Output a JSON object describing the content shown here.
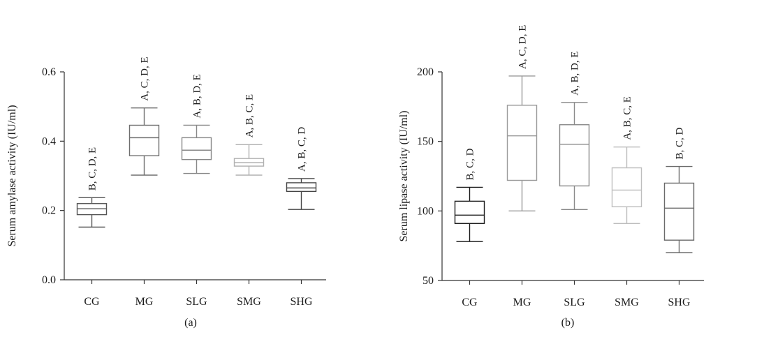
{
  "chart_data": [
    {
      "type": "boxplot",
      "panel_label": "(a)",
      "ylabel": "Serum amylase activity (IU/ml)",
      "ylim": [
        0.0,
        0.6
      ],
      "yticks": [
        0.0,
        0.2,
        0.4,
        0.6
      ],
      "ytick_labels": [
        "0.0",
        "0.2",
        "0.4",
        "0.6"
      ],
      "categories": [
        "CG",
        "MG",
        "SLG",
        "SMG",
        "SHG"
      ],
      "colors": [
        "#555555",
        "#6e6e6e",
        "#888888",
        "#b0b0b0",
        "#444444"
      ],
      "boxes": [
        {
          "min": 0.152,
          "q1": 0.188,
          "median": 0.205,
          "q3": 0.22,
          "max": 0.237
        },
        {
          "min": 0.302,
          "q1": 0.358,
          "median": 0.41,
          "q3": 0.446,
          "max": 0.496
        },
        {
          "min": 0.307,
          "q1": 0.347,
          "median": 0.374,
          "q3": 0.41,
          "max": 0.446
        },
        {
          "min": 0.302,
          "q1": 0.328,
          "median": 0.338,
          "q3": 0.35,
          "max": 0.39
        },
        {
          "min": 0.203,
          "q1": 0.255,
          "median": 0.265,
          "q3": 0.28,
          "max": 0.292
        }
      ],
      "annotations": [
        "B, C, D, E",
        "A, C, D, E",
        "A, B, D, E",
        "A, B, C, E",
        "A, B, C, D"
      ]
    },
    {
      "type": "boxplot",
      "panel_label": "(b)",
      "ylabel": "Serum lipase activity (IU/ml)",
      "ylim": [
        50,
        200
      ],
      "yticks": [
        50,
        100,
        150,
        200
      ],
      "ytick_labels": [
        "50",
        "100",
        "150",
        "200"
      ],
      "categories": [
        "CG",
        "MG",
        "SLG",
        "SMG",
        "SHG"
      ],
      "colors": [
        "#1a1a1a",
        "#9a9a9a",
        "#888888",
        "#bdbdbd",
        "#6a6a6a"
      ],
      "boxes": [
        {
          "min": 78,
          "q1": 91,
          "median": 97,
          "q3": 107,
          "max": 117
        },
        {
          "min": 100,
          "q1": 122,
          "median": 154,
          "q3": 176,
          "max": 197
        },
        {
          "min": 101,
          "q1": 118,
          "median": 148,
          "q3": 162,
          "max": 178
        },
        {
          "min": 91,
          "q1": 103,
          "median": 115,
          "q3": 131,
          "max": 146
        },
        {
          "min": 70,
          "q1": 79,
          "median": 102,
          "q3": 120,
          "max": 132
        }
      ],
      "annotations": [
        "B, C, D",
        "A, C, D, E",
        "A, B, D, E",
        "A, B, C, E",
        "B, C, D"
      ]
    }
  ]
}
